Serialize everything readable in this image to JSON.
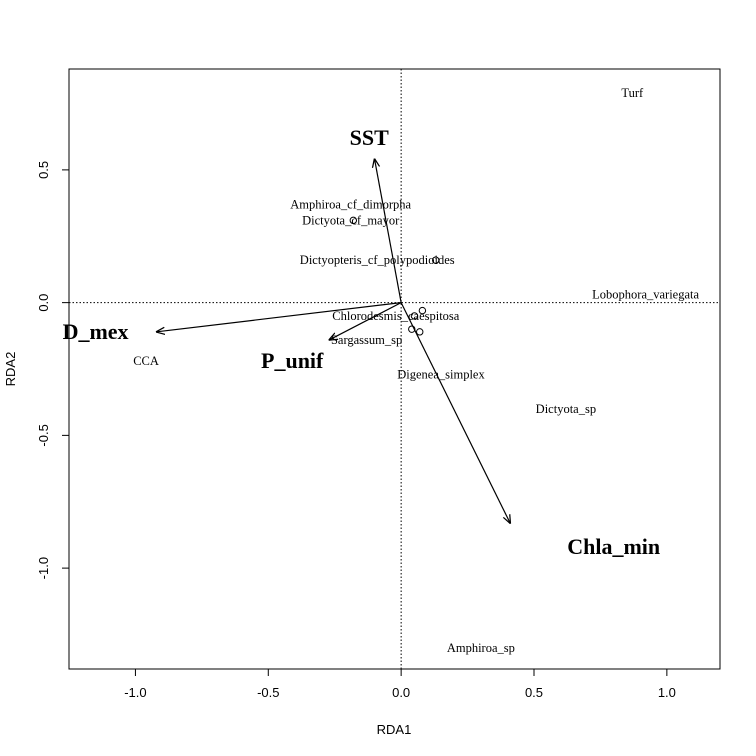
{
  "chart_data": {
    "type": "scatter",
    "xlabel": "RDA1",
    "ylabel": "RDA2",
    "xlim": [
      -1.25,
      1.2
    ],
    "ylim": [
      -1.38,
      0.88
    ],
    "x_ticks": [
      -1.0,
      -0.5,
      0.0,
      0.5,
      1.0
    ],
    "x_tick_labels": [
      "-1.0",
      "-0.5",
      "0.0",
      "0.5",
      "1.0"
    ],
    "y_ticks": [
      -1.0,
      -0.5,
      0.0,
      0.5
    ],
    "y_tick_labels": [
      "-1.0",
      "-0.5",
      "0.0",
      "0.5"
    ],
    "reference_lines": {
      "x": 0,
      "y": 0,
      "style": "dotted"
    },
    "grid": false,
    "species": [
      {
        "label": "Turf",
        "x": 0.87,
        "y": 0.79
      },
      {
        "label": "Amphiroa_cf_dimorpha",
        "x": -0.19,
        "y": 0.37
      },
      {
        "label": "Dictyota_cf_mayor",
        "x": -0.19,
        "y": 0.31
      },
      {
        "label": "Dictyopteris_cf_polypodioides",
        "x": -0.09,
        "y": 0.16
      },
      {
        "label": "Lobophora_variegata",
        "x": 0.92,
        "y": 0.03
      },
      {
        "label": "Chlorodesmis_caespitosa",
        "x": -0.02,
        "y": -0.05
      },
      {
        "label": "Sargassum_sp",
        "x": -0.13,
        "y": -0.14
      },
      {
        "label": "CCA",
        "x": -0.96,
        "y": -0.22
      },
      {
        "label": "Digenea_simplex",
        "x": 0.15,
        "y": -0.27
      },
      {
        "label": "Dictyota_sp",
        "x": 0.62,
        "y": -0.4
      },
      {
        "label": "Amphiroa_sp",
        "x": 0.3,
        "y": -1.3
      }
    ],
    "points": [
      {
        "x": -0.18,
        "y": 0.31
      },
      {
        "x": 0.13,
        "y": 0.16
      },
      {
        "x": 0.05,
        "y": -0.05
      },
      {
        "x": 0.08,
        "y": -0.03
      },
      {
        "x": 0.04,
        "y": -0.1
      },
      {
        "x": 0.07,
        "y": -0.11
      }
    ],
    "vectors": [
      {
        "label": "SST",
        "x": -0.1,
        "y": 0.54,
        "label_x": -0.12,
        "label_y": 0.62
      },
      {
        "label": "D_mex",
        "x": -0.92,
        "y": -0.11,
        "label_x": -1.15,
        "label_y": -0.11
      },
      {
        "label": "P_unif",
        "x": -0.27,
        "y": -0.14,
        "label_x": -0.41,
        "label_y": -0.22
      },
      {
        "label": "Chla_min",
        "x": 0.41,
        "y": -0.83,
        "label_x": 0.8,
        "label_y": -0.92
      }
    ]
  }
}
